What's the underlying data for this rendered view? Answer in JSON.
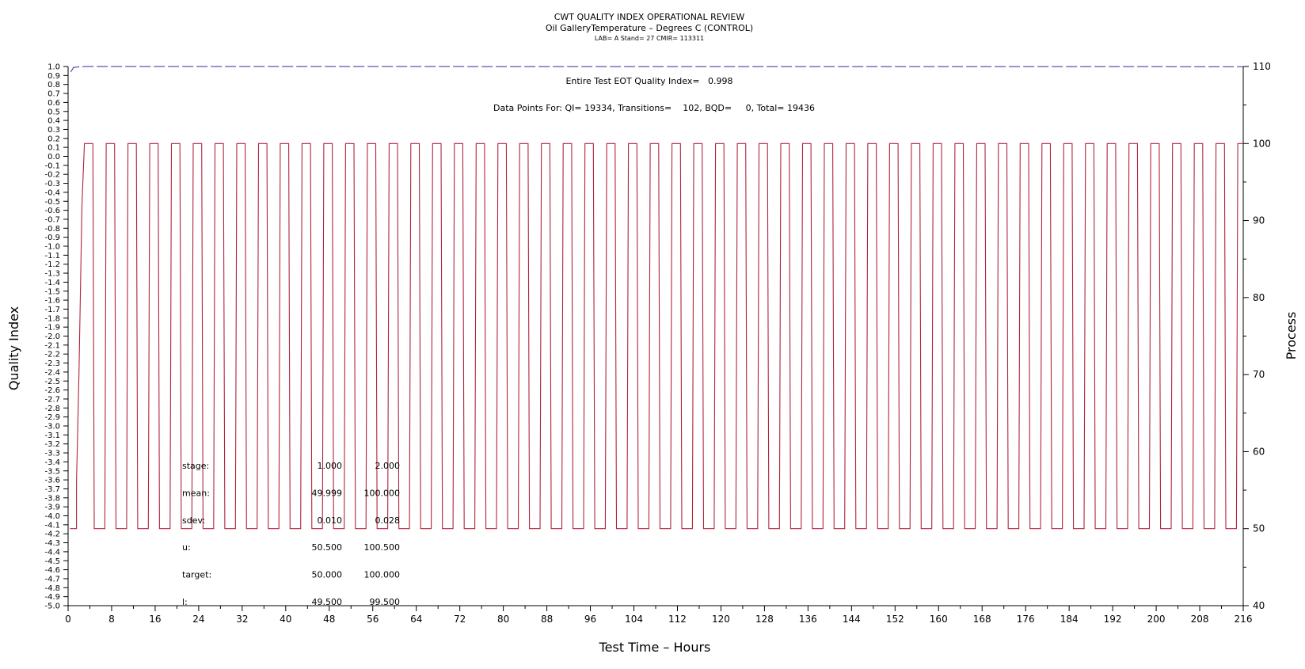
{
  "chart_data": {
    "type": "line",
    "title": "CWT QUALITY INDEX OPERATIONAL REVIEW",
    "subtitle": "Oil GalleryTemperature – Degrees C (CONTROL)",
    "subtitle2": "LAB= A Stand= 27 CMIR= 113311",
    "xlabel": "Test Time – Hours",
    "ylabel_left": "Quality Index",
    "ylabel_right": "Process",
    "xlim": [
      0,
      216
    ],
    "x_ticks": [
      0,
      8,
      16,
      24,
      32,
      40,
      48,
      56,
      64,
      72,
      80,
      88,
      96,
      104,
      112,
      120,
      128,
      136,
      144,
      152,
      160,
      168,
      176,
      184,
      192,
      200,
      208,
      216
    ],
    "ylim_left": [
      -5.0,
      1.0
    ],
    "left_tick_step": 0.1,
    "ylim_right": [
      40,
      110
    ],
    "right_ticks": [
      40,
      50,
      60,
      70,
      80,
      90,
      100,
      110
    ],
    "annotations": {
      "eot": "Entire Test EOT Quality Index=   0.998",
      "datapoints": "Data Points For: QI= 19334, Transitions=    102, BQD=     0, Total= 19436"
    },
    "stats_table": [
      {
        "label": "stage:",
        "c1": "1.000",
        "c2": "2.000"
      },
      {
        "label": "mean:",
        "c1": "49.999",
        "c2": "100.000"
      },
      {
        "label": "sdev:",
        "c1": "0.010",
        "c2": "0.028"
      },
      {
        "label": "u:",
        "c1": "50.500",
        "c2": "100.500"
      },
      {
        "label": "target:",
        "c1": "50.000",
        "c2": "100.000"
      },
      {
        "label": "l:",
        "c1": "49.500",
        "c2": "99.500"
      }
    ],
    "series": [
      {
        "axis": "right",
        "color": "#b0243c",
        "pattern": {
          "low": 50,
          "high": 100,
          "start_hour": 3.0,
          "cycle_hours": 4.0,
          "high_hours": 1.55,
          "ramp_hours": 0.25,
          "cycles": 54
        }
      },
      {
        "axis": "left",
        "color": "#2a2aa6",
        "points": [
          [
            0.5,
            0.94
          ],
          [
            1.0,
            0.99
          ],
          [
            3.0,
            1.0
          ],
          [
            8.0,
            1.0
          ],
          [
            216.0,
            0.998
          ]
        ]
      }
    ]
  }
}
